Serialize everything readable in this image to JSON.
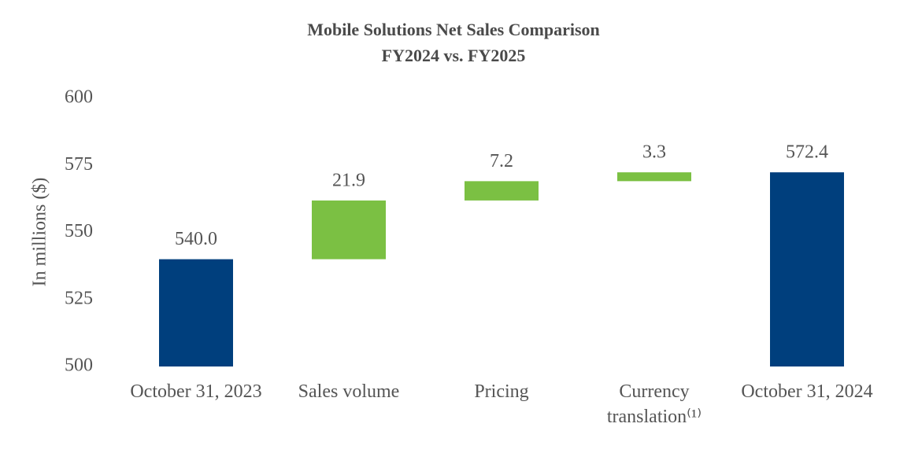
{
  "chart_data": {
    "type": "waterfall",
    "title": "Mobile Solutions Net Sales Comparison",
    "subtitle": "FY2024 vs. FY2025",
    "y_label": "In millions ($)",
    "categories": [
      "October 31, 2023",
      "Sales volume",
      "Pricing",
      "Currency translation⁽¹⁾",
      "October 31, 2024"
    ],
    "values": [
      540,
      21.9,
      7.2,
      3.3,
      572.4
    ],
    "value_labels": [
      "540.0",
      "21.9",
      "7.2",
      "3.3",
      "572.4"
    ],
    "is_total": [
      true,
      false,
      false,
      false,
      true
    ],
    "total_color": "#003f7d",
    "increase_color": "#7bc043",
    "ylim": [
      500,
      600
    ],
    "yticks": [
      500,
      525,
      550,
      575,
      600
    ],
    "grid": false
  }
}
